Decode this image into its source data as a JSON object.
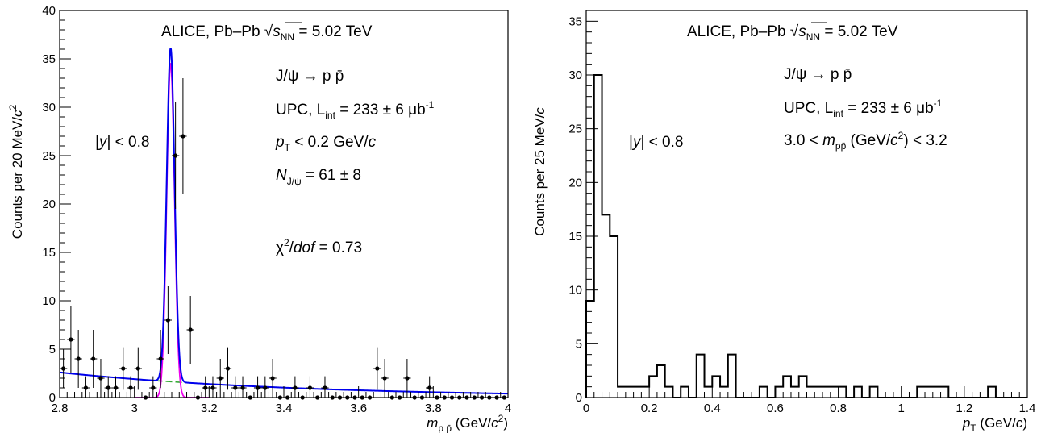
{
  "chart_data": [
    {
      "type": "scatter",
      "xlabel": {
        "var": "m",
        "sub": "p p̄",
        "unit": " (GeV/",
        "unit_var": "c",
        "unit_sup": "2",
        "unit_end": ")"
      },
      "ylabel": {
        "text": "Counts per 20 MeV/",
        "var": "c",
        "sup": "2"
      },
      "xlim": [
        2.8,
        4.0
      ],
      "ylim": [
        0,
        40
      ],
      "xticks": [
        "2.8",
        "3",
        "3.2",
        "3.4",
        "3.6",
        "3.8",
        "4"
      ],
      "yticks": [
        "0",
        "5",
        "10",
        "15",
        "20",
        "25",
        "30",
        "35",
        "40"
      ],
      "annotations": {
        "title_pre": "ALICE, Pb–Pb ",
        "title_sqrt": "√",
        "title_s": "s",
        "title_sub": "NN",
        "title_post": " = 5.02 TeV",
        "decay": "J/ψ → p p̄",
        "upc_pre": "UPC, L",
        "upc_sub": "int",
        "upc_post": " = 233 ± 6 μb",
        "upc_sup": "-1",
        "y_pre": "|",
        "y_var": "y",
        "y_post": "| < 0.8",
        "pt_var": "p",
        "pt_sub": "T",
        "pt_post": " < 0.2 GeV/",
        "pt_c": "c",
        "n_var": "N",
        "n_sub": "J/ψ",
        "n_post": " = 61 ± 8",
        "chi_pre": "χ",
        "chi_sup": "2",
        "chi_slash": "/",
        "chi_var": "dof",
        "chi_post": " = 0.73"
      },
      "data": [
        {
          "x": 2.81,
          "y": 3,
          "err": 2
        },
        {
          "x": 2.83,
          "y": 6,
          "err": 3.5
        },
        {
          "x": 2.85,
          "y": 4,
          "err": 3
        },
        {
          "x": 2.87,
          "y": 1,
          "err": 1.2
        },
        {
          "x": 2.89,
          "y": 4,
          "err": 3
        },
        {
          "x": 2.91,
          "y": 2,
          "err": 2
        },
        {
          "x": 2.93,
          "y": 1,
          "err": 1.2
        },
        {
          "x": 2.95,
          "y": 1,
          "err": 1.2
        },
        {
          "x": 2.97,
          "y": 3,
          "err": 2.2
        },
        {
          "x": 2.99,
          "y": 1,
          "err": 1.2
        },
        {
          "x": 3.01,
          "y": 3,
          "err": 2.2
        },
        {
          "x": 3.03,
          "y": 0,
          "err": 0
        },
        {
          "x": 3.05,
          "y": 1,
          "err": 1.2
        },
        {
          "x": 3.07,
          "y": 4,
          "err": 3
        },
        {
          "x": 3.09,
          "y": 8,
          "err": 3.5
        },
        {
          "x": 3.11,
          "y": 25,
          "err": 5.5
        },
        {
          "x": 3.13,
          "y": 27,
          "err": 6
        },
        {
          "x": 3.15,
          "y": 7,
          "err": 3.5
        },
        {
          "x": 3.17,
          "y": 0,
          "err": 0
        },
        {
          "x": 3.19,
          "y": 1,
          "err": 1.2
        },
        {
          "x": 3.21,
          "y": 1,
          "err": 1.2
        },
        {
          "x": 3.23,
          "y": 2,
          "err": 2
        },
        {
          "x": 3.25,
          "y": 3,
          "err": 2.2
        },
        {
          "x": 3.27,
          "y": 1,
          "err": 1.2
        },
        {
          "x": 3.29,
          "y": 1,
          "err": 1.2
        },
        {
          "x": 3.31,
          "y": 0,
          "err": 0
        },
        {
          "x": 3.33,
          "y": 1,
          "err": 1.2
        },
        {
          "x": 3.35,
          "y": 1,
          "err": 1.2
        },
        {
          "x": 3.37,
          "y": 2,
          "err": 2
        },
        {
          "x": 3.39,
          "y": 0,
          "err": 0
        },
        {
          "x": 3.41,
          "y": 0,
          "err": 0
        },
        {
          "x": 3.43,
          "y": 1,
          "err": 1.2
        },
        {
          "x": 3.45,
          "y": 0,
          "err": 0
        },
        {
          "x": 3.47,
          "y": 1,
          "err": 1.2
        },
        {
          "x": 3.49,
          "y": 0,
          "err": 0
        },
        {
          "x": 3.51,
          "y": 1,
          "err": 1.2
        },
        {
          "x": 3.53,
          "y": 0,
          "err": 0
        },
        {
          "x": 3.55,
          "y": 0,
          "err": 0
        },
        {
          "x": 3.57,
          "y": 0,
          "err": 0
        },
        {
          "x": 3.59,
          "y": 0,
          "err": 0
        },
        {
          "x": 3.61,
          "y": 0,
          "err": 0
        },
        {
          "x": 3.63,
          "y": 0,
          "err": 0
        },
        {
          "x": 3.65,
          "y": 3,
          "err": 2.2
        },
        {
          "x": 3.67,
          "y": 2,
          "err": 2
        },
        {
          "x": 3.69,
          "y": 0,
          "err": 0
        },
        {
          "x": 3.71,
          "y": 0,
          "err": 0
        },
        {
          "x": 3.73,
          "y": 2,
          "err": 2
        },
        {
          "x": 3.75,
          "y": 0,
          "err": 0
        },
        {
          "x": 3.77,
          "y": 0,
          "err": 0
        },
        {
          "x": 3.79,
          "y": 1,
          "err": 1.2
        },
        {
          "x": 3.81,
          "y": 0,
          "err": 0
        },
        {
          "x": 3.83,
          "y": 0,
          "err": 0
        },
        {
          "x": 3.85,
          "y": 0,
          "err": 0
        },
        {
          "x": 3.87,
          "y": 0,
          "err": 0
        },
        {
          "x": 3.89,
          "y": 0,
          "err": 0
        },
        {
          "x": 3.91,
          "y": 0,
          "err": 0
        },
        {
          "x": 3.93,
          "y": 0,
          "err": 0
        },
        {
          "x": 3.95,
          "y": 0,
          "err": 0
        },
        {
          "x": 3.97,
          "y": 0,
          "err": 0
        },
        {
          "x": 3.99,
          "y": 0,
          "err": 0
        }
      ],
      "fit": {
        "peak_mean": 3.097,
        "peak_sigma": 0.0105,
        "peak_amplitude": 34.5,
        "background_at_2_8": 2.6,
        "background_slope": 1.55,
        "colors": {
          "total": "#0000ee",
          "signal": "#ee00ee",
          "background": "#33aa33"
        }
      }
    },
    {
      "type": "histogram",
      "xlabel": {
        "var": "p",
        "sub": "T",
        "unit": " (GeV/",
        "unit_var": "c",
        "unit_end": ")"
      },
      "ylabel": {
        "text": "Counts per 25 MeV/",
        "var": "c"
      },
      "xlim": [
        0,
        1.4
      ],
      "ylim": [
        0,
        36
      ],
      "xticks": [
        "0",
        "0.2",
        "0.4",
        "0.6",
        "0.8",
        "1",
        "1.2",
        "1.4"
      ],
      "yticks": [
        "0",
        "5",
        "10",
        "15",
        "20",
        "25",
        "30",
        "35"
      ],
      "annotations": {
        "title_pre": "ALICE, Pb–Pb ",
        "title_sqrt": "√",
        "title_s": "s",
        "title_sub": "NN",
        "title_post": " = 5.02 TeV",
        "decay": "J/ψ → p p̄",
        "upc_pre": "UPC, L",
        "upc_sub": "int",
        "upc_post": " = 233 ± 6 μb",
        "upc_sup": "-1",
        "y_pre": "|",
        "y_var": "y",
        "y_post": "| < 0.8",
        "m_pre": "3.0 < ",
        "m_var": "m",
        "m_sub": "pp̄",
        "m_mid": " (GeV/",
        "m_c": "c",
        "m_sup": "2",
        "m_post": ") < 3.2"
      },
      "bin_width": 0.025,
      "counts": [
        9,
        30,
        17,
        15,
        1,
        1,
        1,
        1,
        2,
        3,
        1,
        0,
        1,
        0,
        4,
        1,
        2,
        1,
        4,
        0,
        0,
        0,
        1,
        0,
        1,
        2,
        1,
        2,
        1,
        1,
        1,
        1,
        1,
        0,
        1,
        0,
        1,
        0,
        0,
        0,
        0,
        0,
        1,
        1,
        1,
        1,
        0,
        0,
        0,
        0,
        0,
        1,
        0,
        0,
        0,
        0
      ]
    }
  ]
}
